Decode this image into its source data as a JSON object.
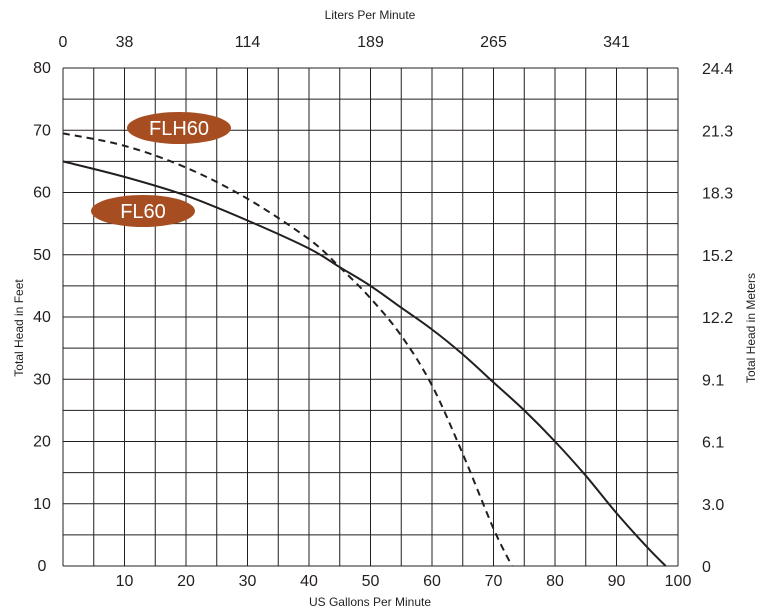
{
  "chart_data": {
    "type": "line",
    "title": "",
    "xlabel": "US Gallons Per Minute",
    "ylabel": "Total Head in Feet",
    "x2label": "Liters Per Minute",
    "y2label": "Total Head in Meters",
    "xlim": [
      0,
      100
    ],
    "ylim": [
      0,
      80
    ],
    "x_ticks": [
      "10",
      "20",
      "30",
      "40",
      "50",
      "60",
      "70",
      "80",
      "90",
      "100"
    ],
    "y_ticks": [
      "0",
      "10",
      "20",
      "30",
      "40",
      "50",
      "60",
      "70",
      "80"
    ],
    "x2_ticks": [
      {
        "value": 0,
        "label": "0"
      },
      {
        "value": 10,
        "label": "38"
      },
      {
        "value": 30,
        "label": "114"
      },
      {
        "value": 50,
        "label": "189"
      },
      {
        "value": 70,
        "label": "265"
      },
      {
        "value": 90,
        "label": "341"
      }
    ],
    "y2_ticks": [
      {
        "value": 0,
        "label": "0"
      },
      {
        "value": 10,
        "label": "3.0"
      },
      {
        "value": 20,
        "label": "6.1"
      },
      {
        "value": 30,
        "label": "9.1"
      },
      {
        "value": 40,
        "label": "12.2"
      },
      {
        "value": 50,
        "label": "15.2"
      },
      {
        "value": 60,
        "label": "18.3"
      },
      {
        "value": 70,
        "label": "21.3"
      },
      {
        "value": 80,
        "label": "24.4"
      }
    ],
    "grid": true,
    "series": [
      {
        "name": "FL60",
        "style": "solid",
        "color": "#231f20",
        "x": [
          0,
          10,
          20,
          30,
          40,
          45,
          50,
          55,
          60,
          65,
          70,
          75,
          80,
          85,
          90,
          95,
          98
        ],
        "y": [
          65,
          62.5,
          59.5,
          55.5,
          51,
          48,
          45,
          41.5,
          38,
          34,
          29.5,
          25,
          20,
          14.5,
          8.5,
          3,
          0
        ]
      },
      {
        "name": "FLH60",
        "style": "dashed",
        "color": "#231f20",
        "x": [
          0,
          10,
          20,
          30,
          40,
          45,
          50,
          55,
          60,
          65,
          70,
          73
        ],
        "y": [
          69.5,
          67.5,
          64,
          59,
          52.5,
          48,
          43,
          37,
          29,
          18,
          6,
          0
        ]
      }
    ],
    "label_color": "#a64d22"
  }
}
